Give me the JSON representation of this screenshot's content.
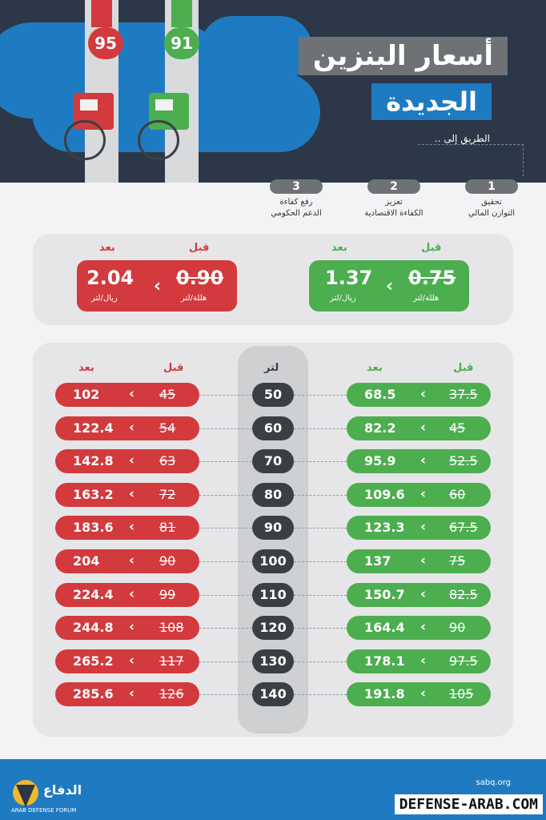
{
  "header": {
    "title_line1": "أسعار البنزين",
    "title_line2": "الجديدة",
    "road_label": "الطريق إلى ..",
    "pump_left_label": "95",
    "pump_right_label": "91"
  },
  "steps": [
    {
      "num": "1",
      "line1": "تحقيق",
      "line2": "التوازن المالي"
    },
    {
      "num": "2",
      "line1": "تعزيز",
      "line2": "الكفاءة الاقتصادية"
    },
    {
      "num": "3",
      "line1": "رفع كفاءة",
      "line2": "الدعم الحكومي"
    }
  ],
  "prices": {
    "before_label": "قبل",
    "after_label": "بعد",
    "green": {
      "before": "0.75",
      "before_unit": "هللة/لتر",
      "after": "1.37",
      "after_unit": "ريال/لتر"
    },
    "red": {
      "before": "0.90",
      "before_unit": "هللة/لتر",
      "after": "2.04",
      "after_unit": "ريال/لتر"
    }
  },
  "table": {
    "liter_label": "لتر",
    "before_label": "قبل",
    "after_label": "بعد",
    "rows": [
      {
        "liters": "50",
        "green_before": "37.5",
        "green_after": "68.5",
        "red_before": "45",
        "red_after": "102"
      },
      {
        "liters": "60",
        "green_before": "45",
        "green_after": "82.2",
        "red_before": "54",
        "red_after": "122.4"
      },
      {
        "liters": "70",
        "green_before": "52.5",
        "green_after": "95.9",
        "red_before": "63",
        "red_after": "142.8"
      },
      {
        "liters": "80",
        "green_before": "60",
        "green_after": "109.6",
        "red_before": "72",
        "red_after": "163.2"
      },
      {
        "liters": "90",
        "green_before": "67.5",
        "green_after": "123.3",
        "red_before": "81",
        "red_after": "183.6"
      },
      {
        "liters": "100",
        "green_before": "75",
        "green_after": "137",
        "red_before": "90",
        "red_after": "204"
      },
      {
        "liters": "110",
        "green_before": "82.5",
        "green_after": "150.7",
        "red_before": "99",
        "red_after": "224.4"
      },
      {
        "liters": "120",
        "green_before": "90",
        "green_after": "164.4",
        "red_before": "108",
        "red_after": "244.8"
      },
      {
        "liters": "130",
        "green_before": "97.5",
        "green_after": "178.1",
        "red_before": "117",
        "red_after": "265.2"
      },
      {
        "liters": "140",
        "green_before": "105",
        "green_after": "191.8",
        "red_before": "126",
        "red_after": "285.6"
      }
    ]
  },
  "footer": {
    "site": "sabq.org",
    "watermark": "DEFENSE-ARAB.COM",
    "logo_text": "ARAB DEFENSE FORUM"
  },
  "colors": {
    "green": "#4cae4f",
    "red": "#d23a3e",
    "blue": "#1f7bc1",
    "navy": "#2c3748",
    "gray": "#6f7275"
  }
}
